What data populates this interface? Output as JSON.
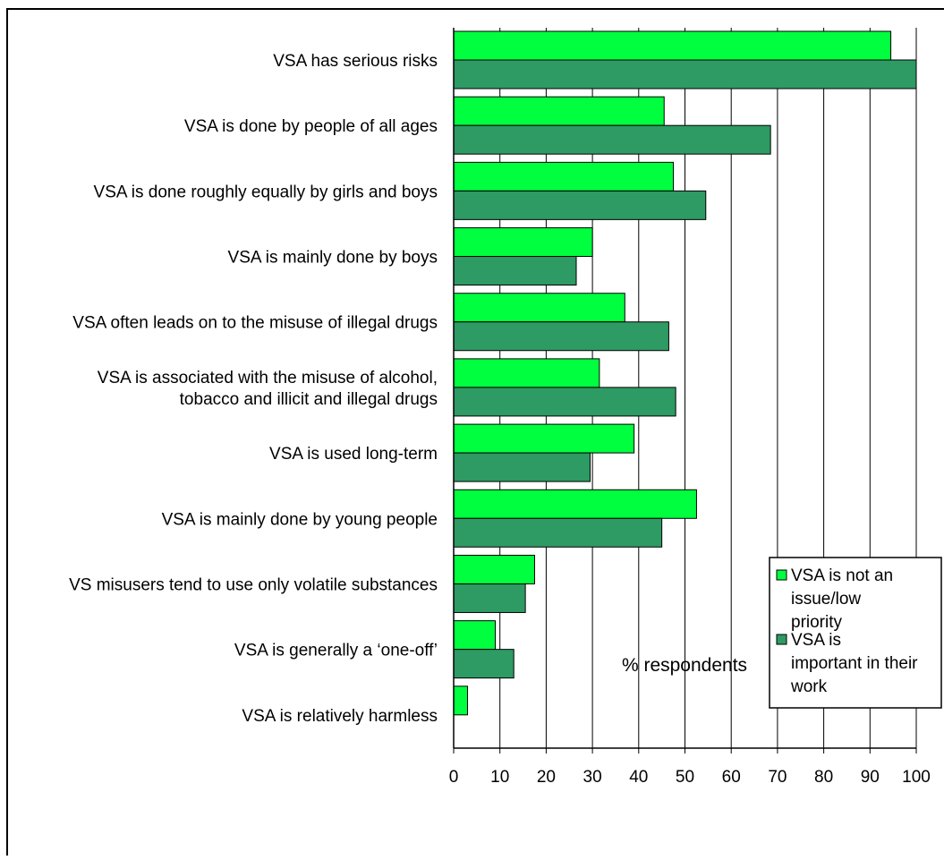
{
  "chart_data": {
    "type": "bar",
    "orientation": "horizontal",
    "title": "",
    "xlabel": "% respondents",
    "ylabel": "",
    "xlim": [
      0,
      100
    ],
    "xticks": [
      0,
      10,
      20,
      30,
      40,
      50,
      60,
      70,
      80,
      90,
      100
    ],
    "grid": "vertical",
    "legend_position": "bottom-right",
    "categories": [
      [
        "VSA has serious  risks"
      ],
      [
        "VSA is done by people of all ages"
      ],
      [
        "VSA is done roughly equally by girls and boys"
      ],
      [
        "VSA is mainly done by boys"
      ],
      [
        "VSA often leads on to the misuse of illegal drugs"
      ],
      [
        "VSA is associated with the misuse of alcohol,",
        "tobacco and illicit and illegal drugs"
      ],
      [
        "VSA is used long-term"
      ],
      [
        "VSA is mainly done by young people"
      ],
      [
        "VS misusers tend to use only volatile substances"
      ],
      [
        "VSA is generally a ‘one-off’"
      ],
      [
        "VSA is relatively harmless"
      ]
    ],
    "series": [
      {
        "name": "VSA is not an issue/low priority",
        "name_lines": [
          "VSA is not an",
          "issue/low",
          "priority"
        ],
        "color": "#00ff3f",
        "values": [
          94.5,
          45.5,
          47.5,
          30,
          37,
          31.5,
          39,
          52.5,
          17.5,
          9,
          3
        ]
      },
      {
        "name": "VSA is important in their work",
        "name_lines": [
          "VSA is",
          "important in their",
          "work"
        ],
        "color": "#2e9a64",
        "values": [
          100,
          68.5,
          54.5,
          26.5,
          46.5,
          48,
          29.5,
          45,
          15.5,
          13,
          0
        ]
      }
    ]
  }
}
